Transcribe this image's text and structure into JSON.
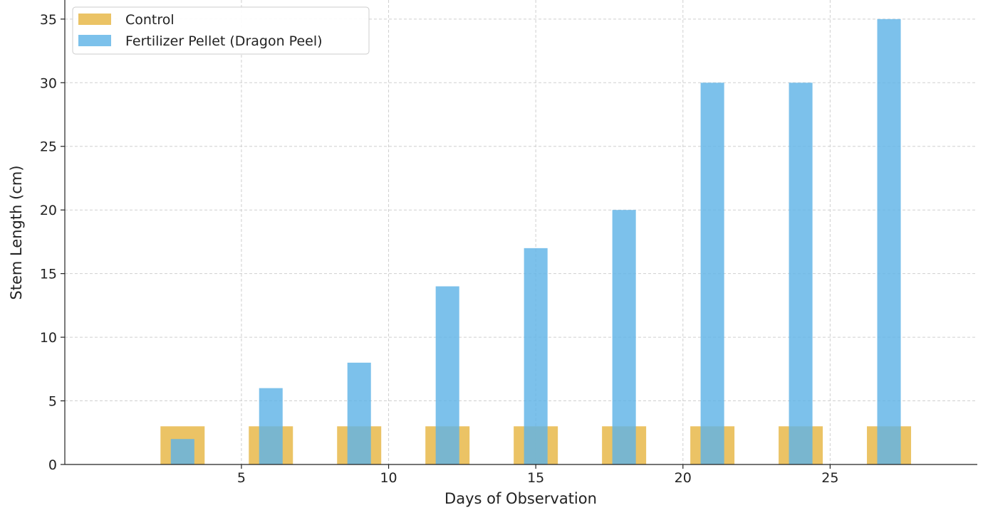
{
  "chart_data": {
    "type": "bar",
    "xlabel": "Days of Observation",
    "ylabel": "Stem Length (cm)",
    "xlim": [
      -1,
      30
    ],
    "ylim": [
      0,
      36.5
    ],
    "x_ticks": [
      5,
      10,
      15,
      20,
      25
    ],
    "y_ticks": [
      0,
      5,
      10,
      15,
      20,
      25,
      30,
      35
    ],
    "grid": true,
    "legend_position": "top-left",
    "bar_width_days": {
      "Control": 1.5,
      "Fertilizer Pellet (Dragon Peel)": 0.8
    },
    "x": [
      3,
      6,
      9,
      12,
      15,
      18,
      21,
      24,
      27
    ],
    "series": [
      {
        "name": "Control",
        "color": "#e8b84a",
        "opacity": 0.85,
        "values": [
          3,
          3,
          3,
          3,
          3,
          3,
          3,
          3,
          3
        ]
      },
      {
        "name": "Fertilizer Pellet (Dragon Peel)",
        "color": "#5fb3e6",
        "opacity": 0.82,
        "values": [
          2,
          6,
          8,
          14,
          17,
          20,
          30,
          30,
          35
        ]
      }
    ]
  }
}
